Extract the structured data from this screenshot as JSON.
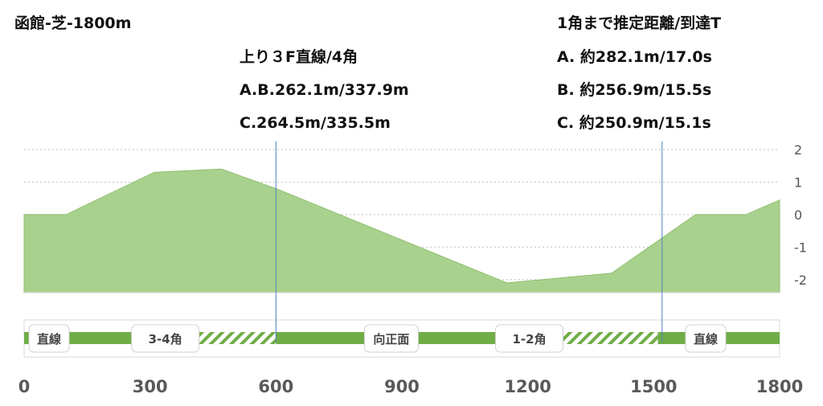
{
  "chart_data": {
    "type": "area",
    "title": "函館-芝-1800m",
    "annotations": {
      "left": {
        "heading": "上り３F直線/4角",
        "lines": [
          "A.B.262.1m/337.9m",
          "C.264.5m/335.5m"
        ]
      },
      "right": {
        "heading": "1角まで推定距離/到達T",
        "lines": [
          "A. 約282.1m/17.0s",
          "B. 約256.9m/15.5s",
          "C. 約250.9m/15.1s"
        ]
      }
    },
    "xlim": [
      0,
      1800
    ],
    "ylim": [
      -2.4,
      2
    ],
    "x_ticks": [
      "0",
      "300",
      "600",
      "900",
      "1200",
      "1500",
      "1800"
    ],
    "y_ticks": [
      "2",
      "1",
      "0",
      "-1",
      "-2"
    ],
    "elevation": {
      "x": [
        0,
        100,
        310,
        470,
        600,
        1150,
        1400,
        1600,
        1720,
        1800
      ],
      "y": [
        0,
        0,
        1.3,
        1.4,
        0.8,
        -2.1,
        -1.8,
        0,
        0,
        0.45
      ]
    },
    "markers_x": [
      600,
      1520
    ],
    "segments": [
      {
        "label": "直線",
        "start": 0,
        "end": 300,
        "style": "solid"
      },
      {
        "label": "3-4角",
        "start": 300,
        "end": 600,
        "style": "hatched"
      },
      {
        "label": "向正面",
        "start": 600,
        "end": 1150,
        "style": "solid"
      },
      {
        "label": "1-2角",
        "start": 1150,
        "end": 1510,
        "style": "hatched"
      },
      {
        "label": "直線",
        "start": 1510,
        "end": 1800,
        "style": "solid"
      }
    ],
    "grid": true,
    "colors": {
      "fill": "#a9d18e",
      "stroke": "#8fbf6f",
      "marker": "#4f7fbf",
      "track": "#70ad47",
      "grid": "#bfbfbf"
    }
  }
}
